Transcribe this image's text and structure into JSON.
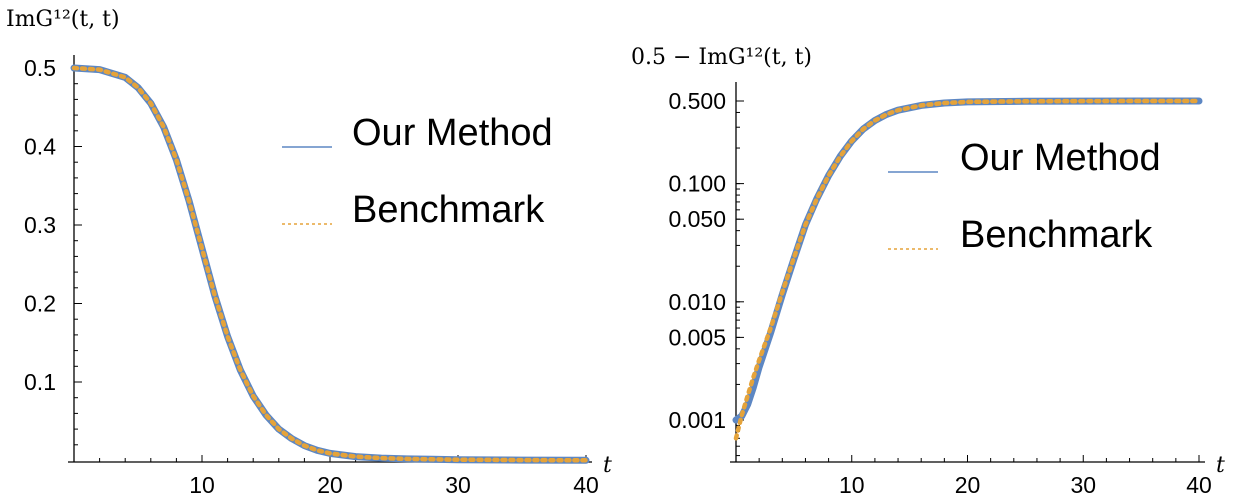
{
  "chart_data": [
    {
      "type": "line",
      "title": "",
      "ylabel": "ImG¹²(t, t)",
      "xlabel": "t",
      "xlim": [
        0,
        40
      ],
      "ylim": [
        0,
        0.52
      ],
      "yscale": "linear",
      "xticks": [
        10,
        20,
        30,
        40
      ],
      "yticks": [
        0.1,
        0.2,
        0.3,
        0.4,
        0.5
      ],
      "xtick_labels": [
        "10",
        "20",
        "30",
        "40"
      ],
      "ytick_labels": [
        "0.1",
        "0.2",
        "0.3",
        "0.4",
        "0.5"
      ],
      "legend_placement": "top-right",
      "series": [
        {
          "name": "Our Method",
          "color": "#5d87c3",
          "style": "solid",
          "x": [
            0,
            2,
            4,
            5,
            6,
            7,
            8,
            9,
            10,
            11,
            12,
            13,
            14,
            15,
            16,
            17,
            18,
            19,
            20,
            22,
            24,
            26,
            28,
            30,
            35,
            40
          ],
          "y": [
            0.5,
            0.498,
            0.488,
            0.475,
            0.455,
            0.425,
            0.383,
            0.33,
            0.27,
            0.21,
            0.158,
            0.115,
            0.082,
            0.058,
            0.04,
            0.028,
            0.019,
            0.013,
            0.009,
            0.005,
            0.003,
            0.002,
            0.0015,
            0.001,
            0.0005,
            0.0003
          ]
        },
        {
          "name": "Benchmark",
          "color": "#e5a33a",
          "style": "dotted",
          "x": [
            0,
            2,
            4,
            5,
            6,
            7,
            8,
            9,
            10,
            11,
            12,
            13,
            14,
            15,
            16,
            17,
            18,
            19,
            20,
            22,
            24,
            26,
            28,
            30,
            35,
            40
          ],
          "y": [
            0.5,
            0.498,
            0.488,
            0.475,
            0.455,
            0.425,
            0.383,
            0.33,
            0.27,
            0.21,
            0.158,
            0.115,
            0.082,
            0.058,
            0.04,
            0.028,
            0.019,
            0.013,
            0.009,
            0.005,
            0.003,
            0.002,
            0.0015,
            0.001,
            0.0005,
            0.0003
          ]
        }
      ]
    },
    {
      "type": "line",
      "title": "",
      "ylabel": "0.5 − ImG¹²(t, t)",
      "xlabel": "t",
      "xlim": [
        0,
        40
      ],
      "ylim": [
        0.0005,
        0.6
      ],
      "yscale": "log",
      "xticks": [
        10,
        20,
        30,
        40
      ],
      "yticks": [
        0.001,
        0.005,
        0.01,
        0.05,
        0.1,
        0.5
      ],
      "xtick_labels": [
        "10",
        "20",
        "30",
        "40"
      ],
      "ytick_labels": [
        "0.001",
        "0.005",
        "0.010",
        "0.050",
        "0.100",
        "0.500"
      ],
      "legend_placement": "center-right",
      "series": [
        {
          "name": "Our Method",
          "color": "#5d87c3",
          "style": "solid",
          "x": [
            0,
            0.5,
            1,
            1.5,
            2,
            3,
            4,
            5,
            6,
            7,
            8,
            9,
            10,
            11,
            12,
            13,
            14,
            16,
            18,
            20,
            25,
            30,
            35,
            40
          ],
          "y": [
            0.001,
            0.00108,
            0.00135,
            0.0019,
            0.0028,
            0.0055,
            0.0115,
            0.023,
            0.045,
            0.075,
            0.117,
            0.17,
            0.23,
            0.29,
            0.342,
            0.385,
            0.418,
            0.459,
            0.481,
            0.491,
            0.497,
            0.499,
            0.4997,
            0.4999
          ]
        },
        {
          "name": "Benchmark",
          "color": "#e5a33a",
          "style": "dotted",
          "x": [
            0,
            0.5,
            1,
            1.5,
            2,
            3,
            4,
            5,
            6,
            7,
            8,
            9,
            10,
            11,
            12,
            13,
            14,
            16,
            18,
            20,
            25,
            30,
            35,
            40
          ],
          "y": [
            0.0007,
            0.0011,
            0.0016,
            0.0023,
            0.0032,
            0.006,
            0.012,
            0.0235,
            0.045,
            0.075,
            0.117,
            0.17,
            0.23,
            0.29,
            0.342,
            0.385,
            0.418,
            0.459,
            0.481,
            0.491,
            0.497,
            0.499,
            0.4997,
            0.4999
          ]
        }
      ]
    }
  ]
}
